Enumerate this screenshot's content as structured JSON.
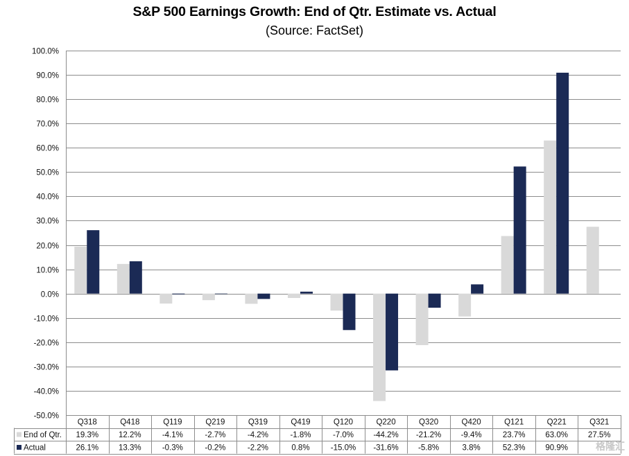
{
  "chart_data": {
    "type": "bar",
    "title": "S&P 500 Earnings Growth:  End of Qtr. Estimate vs. Actual",
    "subtitle": "(Source:  FactSet)",
    "xlabel": "",
    "ylabel": "",
    "ylim": [
      -50,
      100
    ],
    "ytick_step": 10,
    "ytick_format": "percent_1dp",
    "grid": true,
    "legend_placement": "data-table-left",
    "categories": [
      "Q318",
      "Q418",
      "Q119",
      "Q219",
      "Q319",
      "Q419",
      "Q120",
      "Q220",
      "Q320",
      "Q420",
      "Q121",
      "Q221",
      "Q321"
    ],
    "series": [
      {
        "name": "End of Qtr.",
        "color": "#d9d9d9",
        "values": [
          19.3,
          12.2,
          -4.1,
          -2.7,
          -4.2,
          -1.8,
          -7.0,
          -44.2,
          -21.2,
          -9.4,
          23.7,
          63.0,
          27.5
        ],
        "labels": [
          "19.3%",
          "12.2%",
          "-4.1%",
          "-2.7%",
          "-4.2%",
          "-1.8%",
          "-7.0%",
          "-44.2%",
          "-21.2%",
          "-9.4%",
          "23.7%",
          "63.0%",
          "27.5%"
        ]
      },
      {
        "name": "Actual",
        "color": "#1b2a55",
        "values": [
          26.1,
          13.3,
          -0.3,
          -0.2,
          -2.2,
          0.8,
          -15.0,
          -31.6,
          -5.8,
          3.8,
          52.3,
          90.9,
          null
        ],
        "labels": [
          "26.1%",
          "13.3%",
          "-0.3%",
          "-0.2%",
          "-2.2%",
          "0.8%",
          "-15.0%",
          "-31.6%",
          "-5.8%",
          "3.8%",
          "52.3%",
          "90.9%",
          ""
        ]
      }
    ]
  },
  "watermark": "格隆汇"
}
